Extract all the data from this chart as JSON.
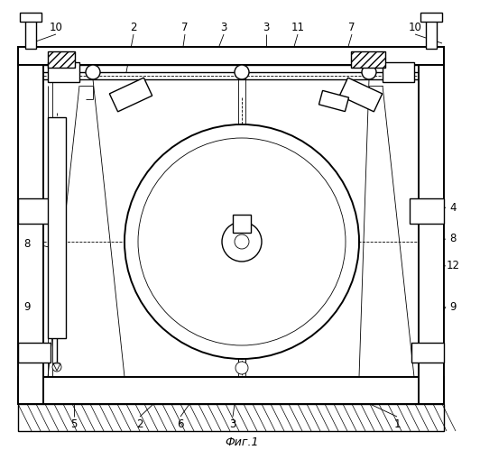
{
  "title": "Фиг.1",
  "bg_color": "#ffffff",
  "line_color": "#000000",
  "figsize": [
    5.32,
    4.99
  ],
  "dpi": 100
}
